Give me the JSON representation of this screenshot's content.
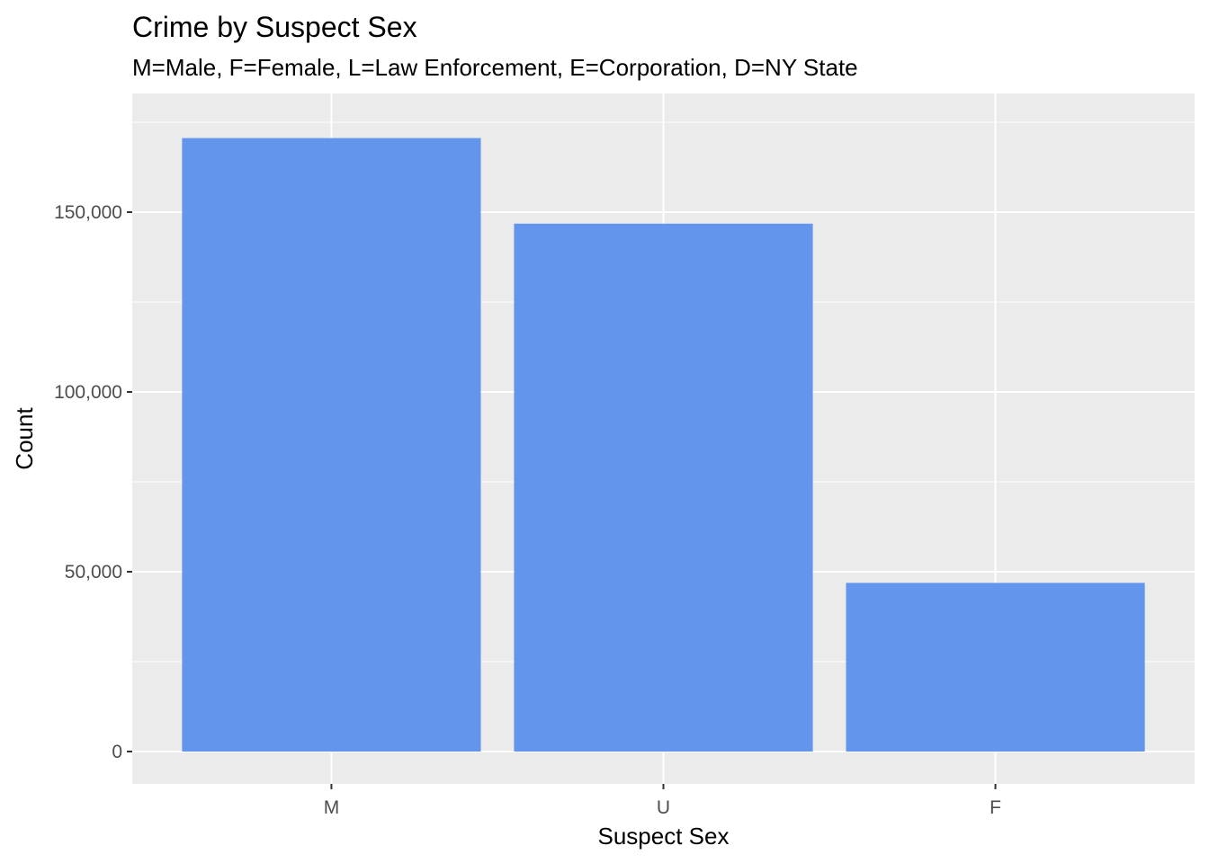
{
  "chart_data": {
    "type": "bar",
    "title": "Crime by Suspect Sex",
    "subtitle": "M=Male, F=Female, L=Law Enforcement, E=Corporation, D=NY State",
    "xlabel": "Suspect Sex",
    "ylabel": "Count",
    "categories": [
      "M",
      "U",
      "F"
    ],
    "values": [
      170600,
      146800,
      46900
    ],
    "ylim": [
      -9000,
      183000
    ],
    "yticks": [
      0,
      50000,
      100000,
      150000
    ],
    "ytick_labels": [
      "0",
      "50,000",
      "100,000",
      "150,000"
    ],
    "grid": true,
    "legend": "none",
    "colors": {
      "bar": "#6495ED",
      "panel": "#EBEBEB",
      "grid": "#FFFFFF",
      "tick": "#333333"
    }
  }
}
